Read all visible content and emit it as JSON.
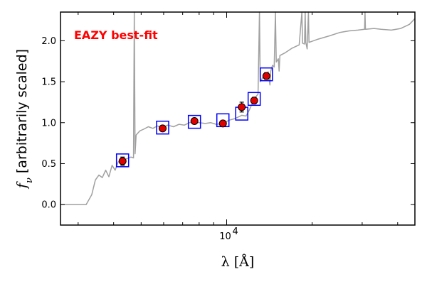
{
  "chart_data": {
    "type": "scatter",
    "annotation": "EAZY best-fit",
    "xlabel": "λ [Å]",
    "ylabel_prefix": "f",
    "ylabel_sub": "ν",
    "ylabel_rest": " [arbitrarily scaled]",
    "x_scale": "log",
    "xlim": [
      2600,
      46000
    ],
    "ylim": [
      -0.25,
      2.35
    ],
    "y_ticks": [
      "0.0",
      "0.5",
      "1.0",
      "1.5",
      "2.0"
    ],
    "x_tick_major": {
      "value": 10000,
      "base": "10",
      "exp": "4"
    },
    "grid": false,
    "colors": {
      "model": "#a0a0a0",
      "observed": "#e00000",
      "model_photometry": "#0000ff",
      "annotation": "#ff0000"
    },
    "observed_points": [
      {
        "x": 4300,
        "y": 0.53,
        "err": 0.05
      },
      {
        "x": 5950,
        "y": 0.93,
        "err": 0.03
      },
      {
        "x": 7700,
        "y": 1.02,
        "err": 0.03
      },
      {
        "x": 9700,
        "y": 0.99,
        "err": 0.03
      },
      {
        "x": 11300,
        "y": 1.19,
        "err": 0.06
      },
      {
        "x": 12500,
        "y": 1.27,
        "err": 0.04
      },
      {
        "x": 13800,
        "y": 1.57,
        "err": 0.04
      }
    ],
    "model_photometry": [
      {
        "x": 4300,
        "y": 0.54
      },
      {
        "x": 5950,
        "y": 0.94
      },
      {
        "x": 7700,
        "y": 1.01
      },
      {
        "x": 9700,
        "y": 1.03
      },
      {
        "x": 11300,
        "y": 1.11
      },
      {
        "x": 12500,
        "y": 1.29
      },
      {
        "x": 13800,
        "y": 1.59
      }
    ],
    "model_spectrum": [
      [
        2600,
        0.0
      ],
      [
        3000,
        0.0
      ],
      [
        3200,
        0.0
      ],
      [
        3350,
        0.12
      ],
      [
        3450,
        0.3
      ],
      [
        3550,
        0.36
      ],
      [
        3650,
        0.33
      ],
      [
        3750,
        0.42
      ],
      [
        3850,
        0.34
      ],
      [
        3950,
        0.48
      ],
      [
        4050,
        0.42
      ],
      [
        4150,
        0.52
      ],
      [
        4300,
        0.54
      ],
      [
        4450,
        0.56
      ],
      [
        4600,
        0.58
      ],
      [
        4700,
        0.57
      ],
      [
        4730,
        2.35
      ],
      [
        4760,
        0.62
      ],
      [
        4800,
        0.85
      ],
      [
        4950,
        0.9
      ],
      [
        5100,
        0.92
      ],
      [
        5300,
        0.95
      ],
      [
        5500,
        0.93
      ],
      [
        5700,
        0.96
      ],
      [
        5950,
        0.94
      ],
      [
        6200,
        0.97
      ],
      [
        6500,
        0.95
      ],
      [
        6800,
        0.98
      ],
      [
        7100,
        0.97
      ],
      [
        7400,
        1.0
      ],
      [
        7700,
        1.01
      ],
      [
        8000,
        1.0
      ],
      [
        8400,
        0.99
      ],
      [
        8800,
        1.0
      ],
      [
        9200,
        0.98
      ],
      [
        9700,
        0.99
      ],
      [
        10200,
        1.03
      ],
      [
        10700,
        1.05
      ],
      [
        11300,
        1.09
      ],
      [
        11700,
        1.08
      ],
      [
        12000,
        1.15
      ],
      [
        12500,
        1.29
      ],
      [
        12900,
        1.35
      ],
      [
        13050,
        2.35
      ],
      [
        13120,
        1.5
      ],
      [
        13400,
        1.55
      ],
      [
        13800,
        1.59
      ],
      [
        14000,
        1.62
      ],
      [
        14200,
        1.46
      ],
      [
        14300,
        1.63
      ],
      [
        14500,
        1.7
      ],
      [
        14700,
        1.68
      ],
      [
        14850,
        2.35
      ],
      [
        14950,
        1.74
      ],
      [
        15200,
        1.78
      ],
      [
        15300,
        1.63
      ],
      [
        15400,
        1.82
      ],
      [
        16000,
        1.85
      ],
      [
        17000,
        1.91
      ],
      [
        18000,
        1.95
      ],
      [
        18400,
        2.35
      ],
      [
        18500,
        1.97
      ],
      [
        18800,
        1.96
      ],
      [
        18900,
        2.35
      ],
      [
        19000,
        1.98
      ],
      [
        19200,
        1.9
      ],
      [
        19400,
        2.35
      ],
      [
        19500,
        1.98
      ],
      [
        21000,
        2.02
      ],
      [
        23000,
        2.06
      ],
      [
        25000,
        2.1
      ],
      [
        27000,
        2.12
      ],
      [
        29000,
        2.13
      ],
      [
        30600,
        2.14
      ],
      [
        30700,
        2.35
      ],
      [
        30800,
        2.14
      ],
      [
        33000,
        2.15
      ],
      [
        35000,
        2.14
      ],
      [
        38000,
        2.13
      ],
      [
        41000,
        2.15
      ],
      [
        44000,
        2.2
      ],
      [
        46000,
        2.27
      ]
    ]
  }
}
